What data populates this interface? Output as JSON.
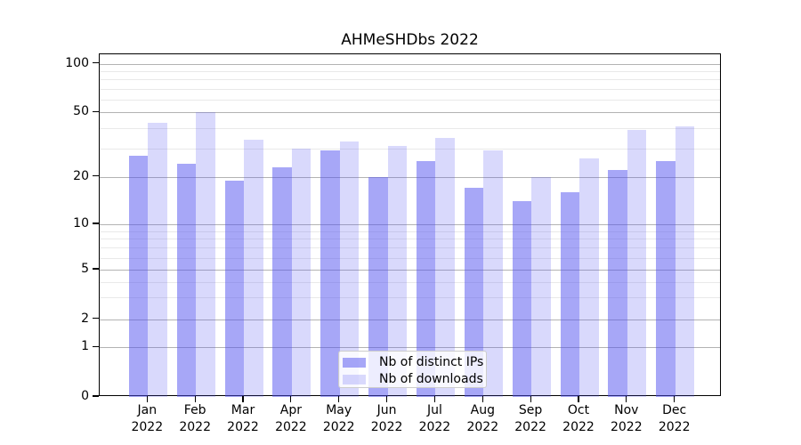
{
  "chart_data": {
    "type": "bar",
    "title": "AHMeSHDbs 2022",
    "categories": [
      "Jan 2022",
      "Feb 2022",
      "Mar 2022",
      "Apr 2022",
      "May 2022",
      "Jun 2022",
      "Jul 2022",
      "Aug 2022",
      "Sep 2022",
      "Oct 2022",
      "Nov 2022",
      "Dec 2022"
    ],
    "series": [
      {
        "name": "Nb of distinct IPs",
        "color": "rgba(80,80,240,0.5)",
        "color_on_white": "#a8a8f8",
        "values": [
          27,
          24,
          19,
          23,
          29,
          20,
          25,
          17,
          14,
          16,
          22,
          25
        ]
      },
      {
        "name": "Nb of downloads",
        "color": "rgba(80,80,240,0.22)",
        "color_on_white": "#d8d8fa",
        "values": [
          43,
          50,
          34,
          30,
          33,
          31,
          35,
          29,
          20,
          26,
          39,
          41
        ]
      }
    ],
    "yscale": "log-like with 0 baseline",
    "y_ticks": [
      0,
      1,
      2,
      5,
      10,
      20,
      50,
      100
    ],
    "y_minor_gridlines": [
      3,
      4,
      6,
      7,
      8,
      9,
      30,
      40,
      60,
      70,
      80,
      90
    ],
    "ylim": [
      0,
      110
    ],
    "grid": true,
    "legend_position": "lower center"
  },
  "colors": {
    "grid_major": "#b3b3b3",
    "grid_minor": "#e9e9e9",
    "axis": "#000000",
    "background": "#ffffff",
    "legend_border": "#cccccc"
  }
}
